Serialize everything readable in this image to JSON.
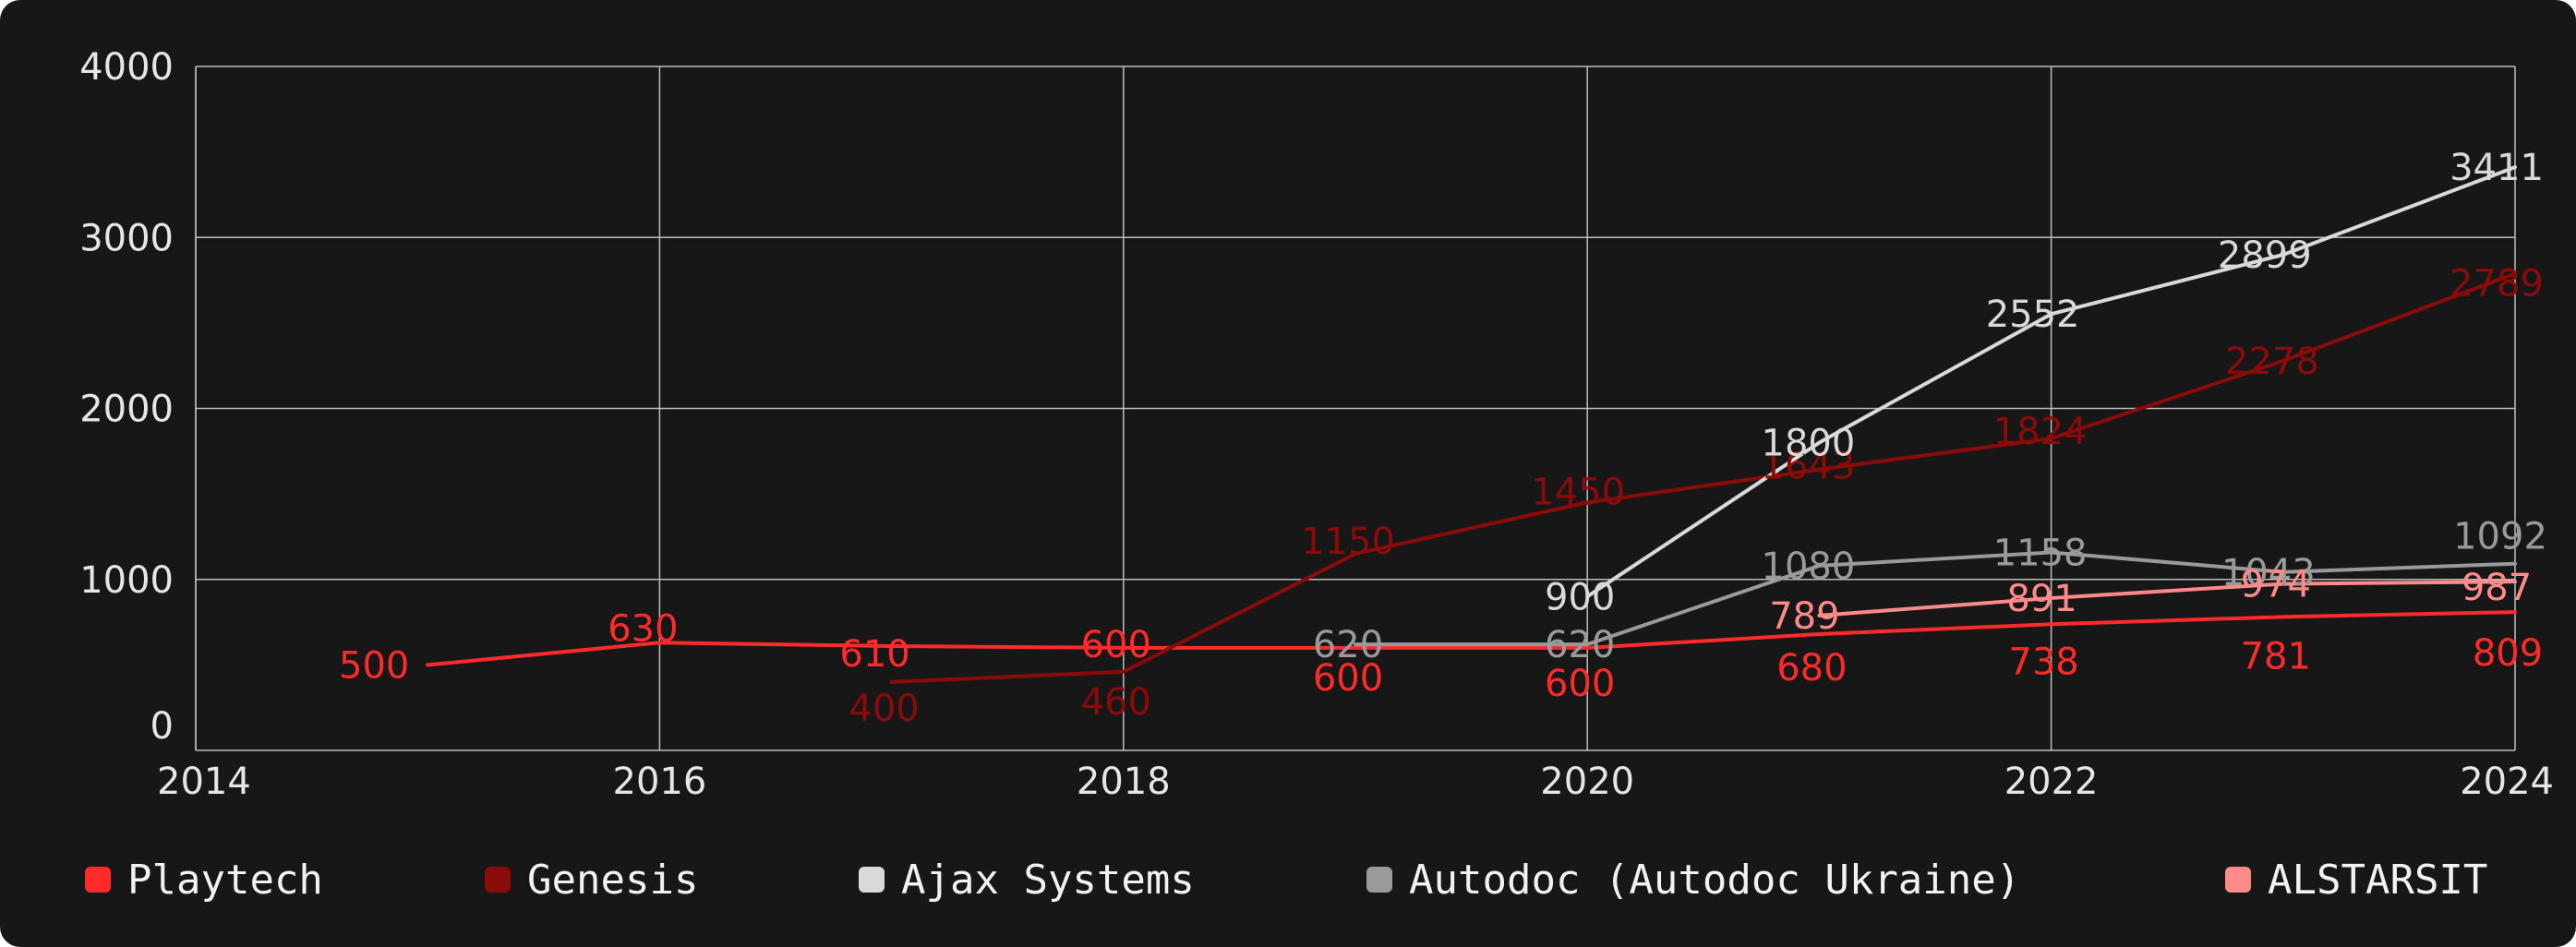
{
  "chart_data": {
    "type": "line",
    "x_ticks": [
      "2014",
      "2016",
      "2018",
      "2020",
      "2022",
      "2024"
    ],
    "y_ticks": [
      "0",
      "1000",
      "2000",
      "3000",
      "4000"
    ],
    "xlim": [
      2014,
      2024
    ],
    "ylim": [
      0,
      4000
    ],
    "grid": true,
    "legend_position": "bottom",
    "series": [
      {
        "name": "Playtech",
        "color": "#ff2a2a",
        "x": [
          2015,
          2016,
          2017,
          2018,
          2019,
          2020,
          2021,
          2022,
          2023,
          2024
        ],
        "values": [
          500,
          630,
          610,
          600,
          600,
          600,
          680,
          738,
          781,
          809
        ],
        "labels": [
          "500",
          "630",
          "610",
          "600",
          "600",
          "600",
          "680",
          "738",
          "781",
          "809"
        ]
      },
      {
        "name": "Genesis",
        "color": "#8b0a0a",
        "x": [
          2017,
          2018,
          2019,
          2020,
          2021,
          2022,
          2023,
          2024
        ],
        "values": [
          400,
          460,
          1150,
          1450,
          1643,
          1824,
          2278,
          2789
        ],
        "labels": [
          "400",
          "460",
          "1150",
          "1450",
          "1643",
          "1824",
          "2278",
          "2789"
        ]
      },
      {
        "name": "Ajax Systems",
        "color": "#d9d9d9",
        "x": [
          2020,
          2021,
          2022,
          2023,
          2024
        ],
        "values": [
          900,
          1800,
          2552,
          2899,
          3411
        ],
        "labels": [
          "900",
          "1800",
          "2552",
          "2899",
          "3411"
        ]
      },
      {
        "name": "Autodoc (Autodoc Ukraine)",
        "color": "#9a9a9a",
        "x": [
          2019,
          2020,
          2021,
          2022,
          2023,
          2024
        ],
        "values": [
          620,
          620,
          1080,
          1158,
          1043,
          1092
        ],
        "labels": [
          "620",
          "620",
          "1080",
          "1158",
          "1043",
          "1092"
        ]
      },
      {
        "name": "ALSTARSIT",
        "color": "#ff8a8a",
        "x": [
          2021,
          2022,
          2023,
          2024
        ],
        "values": [
          789,
          891,
          974,
          987
        ],
        "labels": [
          "789",
          "891",
          "974",
          "987"
        ]
      }
    ]
  }
}
